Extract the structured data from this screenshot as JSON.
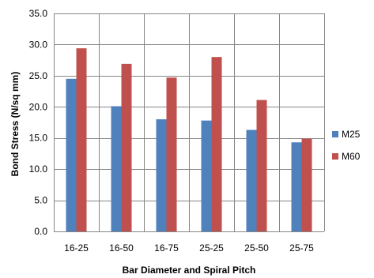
{
  "chart_data": {
    "type": "bar",
    "categories": [
      "16-25",
      "16-50",
      "16-75",
      "25-25",
      "25-50",
      "25-75"
    ],
    "series": [
      {
        "name": "M25",
        "values": [
          24.5,
          20.1,
          18.0,
          17.8,
          16.3,
          14.3
        ],
        "color": "#4f81bd"
      },
      {
        "name": "M60",
        "values": [
          29.4,
          26.9,
          24.7,
          28.0,
          21.1,
          14.9
        ],
        "color": "#c0504d"
      }
    ],
    "xlabel": "Bar Diameter and  Spiral Pitch",
    "ylabel": "Bond Stress (N/sq mm)",
    "ylim": [
      0,
      35
    ],
    "yticks": [
      "0.0",
      "5.0",
      "10.0",
      "15.0",
      "20.0",
      "25.0",
      "30.0",
      "35.0"
    ],
    "grid": true,
    "legend_position": "right"
  }
}
